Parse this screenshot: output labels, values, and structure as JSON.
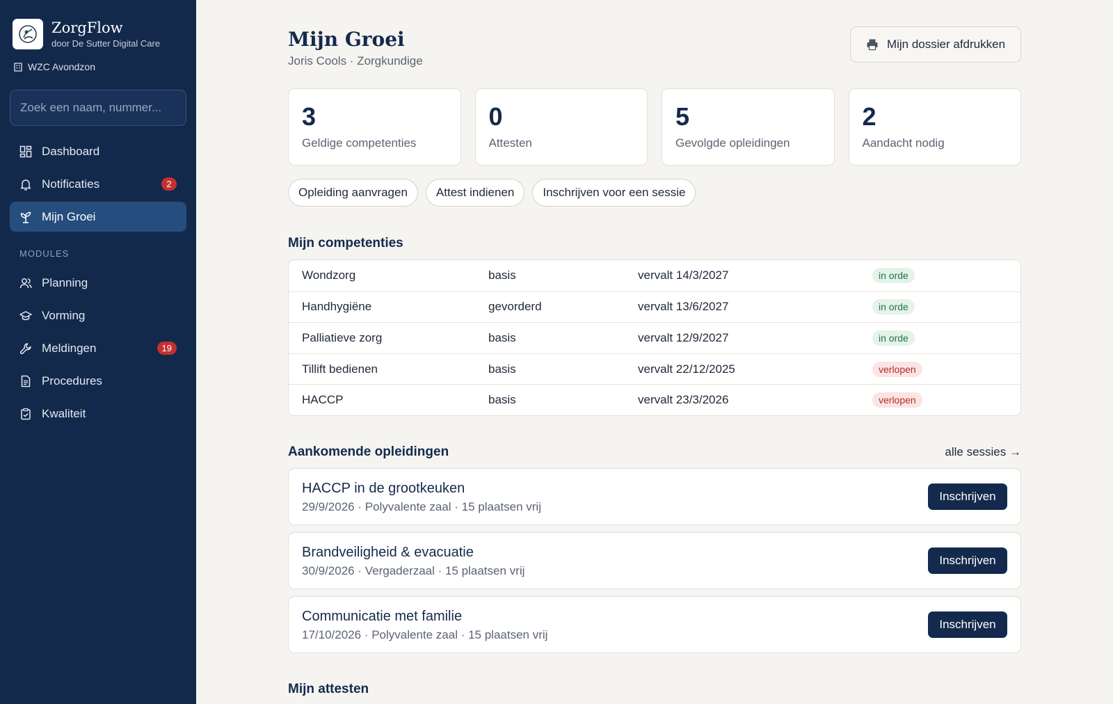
{
  "app": {
    "name": "ZorgFlow",
    "subtitle": "door De Sutter Digital Care",
    "facility": "WZC Avondzon"
  },
  "search": {
    "placeholder": "Zoek een naam, nummer..."
  },
  "sidebar": {
    "items": [
      {
        "label": "Dashboard",
        "icon": "dashboard-icon"
      },
      {
        "label": "Notificaties",
        "icon": "bell-icon",
        "badge": "2"
      },
      {
        "label": "Mijn Groei",
        "icon": "sprout-icon",
        "active": true
      }
    ],
    "modules_heading": "MODULES",
    "modules": [
      {
        "label": "Planning",
        "icon": "users-icon"
      },
      {
        "label": "Vorming",
        "icon": "graduation-cap-icon"
      },
      {
        "label": "Meldingen",
        "icon": "wrench-icon",
        "badge": "19"
      },
      {
        "label": "Procedures",
        "icon": "document-icon"
      },
      {
        "label": "Kwaliteit",
        "icon": "clipboard-check-icon"
      }
    ]
  },
  "header": {
    "title": "Mijn Groei",
    "subtitle": "Joris Cools · Zorgkundige",
    "print_label": "Mijn dossier afdrukken"
  },
  "stats": [
    {
      "value": "3",
      "label": "Geldige competenties"
    },
    {
      "value": "0",
      "label": "Attesten"
    },
    {
      "value": "5",
      "label": "Gevolgde opleidingen"
    },
    {
      "value": "2",
      "label": "Aandacht nodig"
    }
  ],
  "actions": [
    "Opleiding aanvragen",
    "Attest indienen",
    "Inschrijven voor een sessie"
  ],
  "competencies": {
    "title": "Mijn competenties",
    "rows": [
      {
        "name": "Wondzorg",
        "level": "basis",
        "expiry": "vervalt 14/3/2027",
        "status": "in orde",
        "ok": true
      },
      {
        "name": "Handhygiëne",
        "level": "gevorderd",
        "expiry": "vervalt 13/6/2027",
        "status": "in orde",
        "ok": true
      },
      {
        "name": "Palliatieve zorg",
        "level": "basis",
        "expiry": "vervalt 12/9/2027",
        "status": "in orde",
        "ok": true
      },
      {
        "name": "Tillift bedienen",
        "level": "basis",
        "expiry": "vervalt 22/12/2025",
        "status": "verlopen",
        "ok": false
      },
      {
        "name": "HACCP",
        "level": "basis",
        "expiry": "vervalt 23/3/2026",
        "status": "verlopen",
        "ok": false
      }
    ]
  },
  "trainings": {
    "title": "Aankomende opleidingen",
    "link": "alle sessies →",
    "button_label": "Inschrijven",
    "items": [
      {
        "title": "HACCP in de grootkeuken",
        "meta": "29/9/2026 · Polyvalente zaal · 15 plaatsen vrij"
      },
      {
        "title": "Brandveiligheid & evacuatie",
        "meta": "30/9/2026 · Vergaderzaal · 15 plaatsen vrij"
      },
      {
        "title": "Communicatie met familie",
        "meta": "17/10/2026 · Polyvalente zaal · 15 plaatsen vrij"
      }
    ]
  },
  "certificates": {
    "title": "Mijn attesten"
  },
  "colors": {
    "sidebar": "#13294b",
    "active": "#254d7d",
    "primary": "#142a4c",
    "ok": "#23734a",
    "danger": "#c53030"
  }
}
